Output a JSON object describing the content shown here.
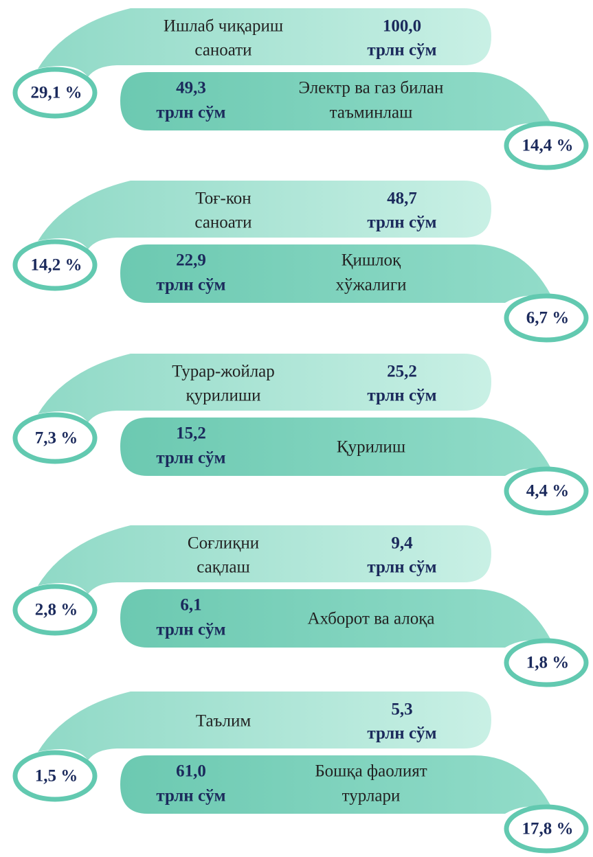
{
  "groups": [
    {
      "top": {
        "label": [
          "Ишлаб чиқариш",
          "саноати"
        ],
        "value": "100,0",
        "unit": "трлн сўм",
        "percent": "29,1 %"
      },
      "bottom": {
        "label": [
          "Электр ва газ билан",
          "таъминлаш"
        ],
        "value": "49,3",
        "unit": "трлн сўм",
        "percent": "14,4 %"
      }
    },
    {
      "top": {
        "label": [
          "Тоғ-кон",
          "саноати"
        ],
        "value": "48,7",
        "unit": "трлн сўм",
        "percent": "14,2 %"
      },
      "bottom": {
        "label": [
          "Қишлоқ",
          "хўжалиги"
        ],
        "value": "22,9",
        "unit": "трлн сўм",
        "percent": "6,7 %"
      }
    },
    {
      "top": {
        "label": [
          "Турар-жойлар",
          "қурилиши"
        ],
        "value": "25,2",
        "unit": "трлн сўм",
        "percent": "7,3 %"
      },
      "bottom": {
        "label": [
          "Қурилиш"
        ],
        "value": "15,2",
        "unit": "трлн сўм",
        "percent": "4,4 %"
      }
    },
    {
      "top": {
        "label": [
          "Соғлиқни",
          "сақлаш"
        ],
        "value": "9,4",
        "unit": "трлн сўм",
        "percent": "2,8 %"
      },
      "bottom": {
        "label": [
          "Ахборот ва алоқа"
        ],
        "value": "6,1",
        "unit": "трлн сўм",
        "percent": "1,8 %"
      }
    },
    {
      "top": {
        "label": [
          "Таълим"
        ],
        "value": "5,3",
        "unit": "трлн сўм",
        "percent": "1,5 %"
      },
      "bottom": {
        "label": [
          "Бошқа фаолият",
          "турлари"
        ],
        "value": "61,0",
        "unit": "трлн сўм",
        "percent": "17,8 %"
      }
    }
  ]
}
